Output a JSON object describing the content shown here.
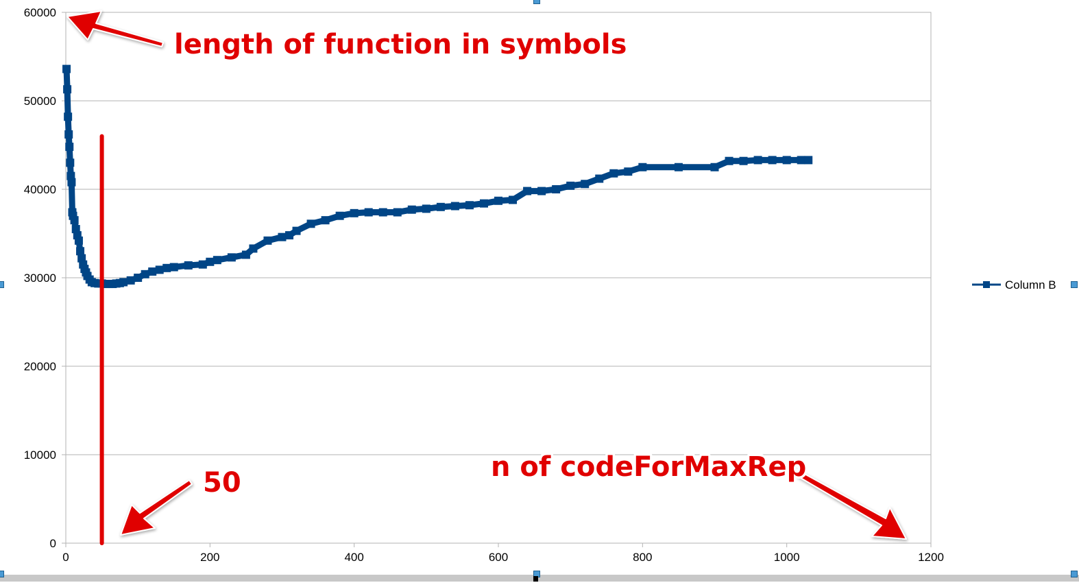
{
  "chart_data": {
    "type": "line",
    "title": "",
    "xlabel": "",
    "ylabel": "",
    "xlim": [
      0,
      1200
    ],
    "ylim": [
      0,
      60000
    ],
    "x_ticks": [
      0,
      200,
      400,
      600,
      800,
      1000,
      1200
    ],
    "y_ticks": [
      0,
      10000,
      20000,
      30000,
      40000,
      50000,
      60000
    ],
    "x_tick_labels": [
      "0",
      "200",
      "400",
      "600",
      "800",
      "1000",
      "1200"
    ],
    "y_tick_labels": [
      "0",
      "10000",
      "20000",
      "30000",
      "40000",
      "50000",
      "60000"
    ],
    "grid": "horizontal",
    "legend": "right",
    "series": [
      {
        "name": "Column B",
        "color": "#004586",
        "marker": "square",
        "x": [
          1,
          2,
          3,
          4,
          5,
          6,
          7,
          8,
          9,
          10,
          12,
          14,
          16,
          18,
          20,
          22,
          24,
          26,
          28,
          30,
          33,
          36,
          40,
          45,
          50,
          55,
          60,
          65,
          70,
          75,
          80,
          90,
          100,
          110,
          120,
          130,
          140,
          150,
          170,
          190,
          200,
          210,
          230,
          250,
          260,
          280,
          300,
          310,
          320,
          340,
          360,
          380,
          400,
          420,
          440,
          460,
          480,
          500,
          520,
          540,
          560,
          580,
          600,
          620,
          640,
          660,
          680,
          700,
          720,
          740,
          760,
          780,
          800,
          850,
          900,
          920,
          940,
          960,
          980,
          1000,
          1020,
          1030
        ],
        "y": [
          53600,
          51300,
          48200,
          46200,
          44800,
          43000,
          41500,
          40800,
          37400,
          37000,
          36500,
          35500,
          34800,
          34200,
          33000,
          32200,
          31500,
          31000,
          30600,
          30200,
          29800,
          29500,
          29400,
          29350,
          29350,
          29300,
          29300,
          29300,
          29350,
          29400,
          29500,
          29700,
          30000,
          30400,
          30700,
          30900,
          31100,
          31200,
          31400,
          31500,
          31800,
          32000,
          32300,
          32600,
          33300,
          34200,
          34600,
          34800,
          35300,
          36100,
          36500,
          37000,
          37300,
          37400,
          37400,
          37400,
          37700,
          37800,
          38000,
          38100,
          38200,
          38400,
          38700,
          38800,
          39800,
          39800,
          40000,
          40400,
          40600,
          41200,
          41800,
          42000,
          42500,
          42500,
          42500,
          43200,
          43200,
          43300,
          43300,
          43300,
          43300,
          43300
        ]
      }
    ],
    "annotations": [
      {
        "text": "length of function in symbols",
        "color": "#e00000"
      },
      {
        "text": "50",
        "color": "#e00000",
        "x": 50
      },
      {
        "text": "n of codeForMaxRep",
        "color": "#e00000"
      }
    ]
  }
}
